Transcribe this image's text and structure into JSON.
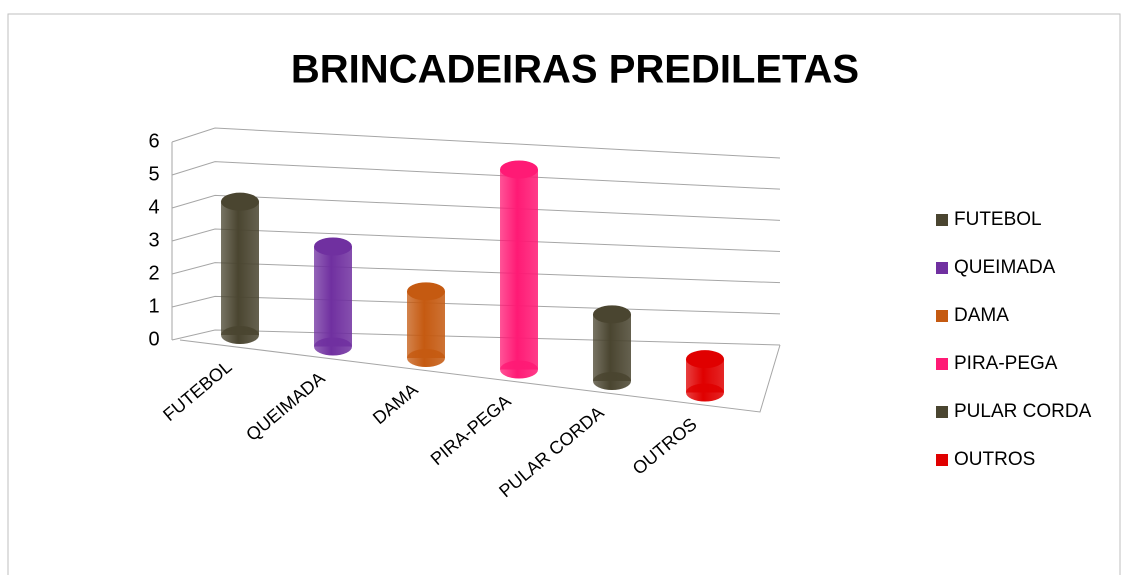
{
  "chart_data": {
    "type": "bar3d",
    "title": "BRINCADEIRAS PREDILETAS",
    "categories": [
      "FUTEBOL",
      "QUEIMADA",
      "DAMA",
      "PIRA-PEGA",
      "PULAR CORDA",
      "OUTROS"
    ],
    "values": [
      4,
      3,
      2,
      6,
      2,
      1
    ],
    "colors": [
      "#4a4530",
      "#7030a0",
      "#c55a11",
      "#ff1a75",
      "#4a4530",
      "#e00000"
    ],
    "ylim": [
      0,
      6
    ],
    "yticks": [
      0,
      1,
      2,
      3,
      4,
      5,
      6
    ],
    "grid": true,
    "legend": "right"
  }
}
